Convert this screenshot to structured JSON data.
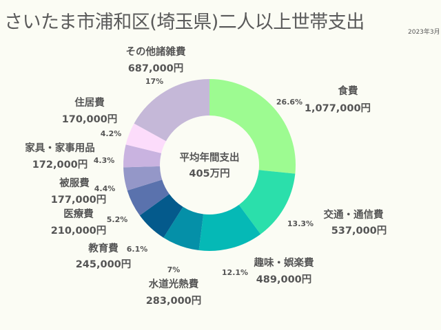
{
  "title": "さいたま市浦和区(埼玉県)二人以上世帯支出",
  "date": "2023年3月",
  "chart_data": {
    "type": "pie",
    "style": "donut",
    "center_label": {
      "line1": "平均年間支出",
      "line2": "405万円"
    },
    "slices": [
      {
        "name": "食費",
        "value_label": "1,077,000円",
        "value": 1077000,
        "percent_label": "26.6%",
        "color": "#9dfb91"
      },
      {
        "name": "交通・通信費",
        "value_label": "537,000円",
        "value": 537000,
        "percent_label": "13.3%",
        "color": "#2bdfab"
      },
      {
        "name": "趣味・娯楽費",
        "value_label": "489,000円",
        "value": 489000,
        "percent_label": "12.1%",
        "color": "#05b9b6"
      },
      {
        "name": "水道光熱費",
        "value_label": "283,000円",
        "value": 283000,
        "percent_label": "7%",
        "color": "#0590a8"
      },
      {
        "name": "教育費",
        "value_label": "245,000円",
        "value": 245000,
        "percent_label": "6.1%",
        "color": "#045a8c"
      },
      {
        "name": "医療費",
        "value_label": "210,000円",
        "value": 210000,
        "percent_label": "5.2%",
        "color": "#5a72ad"
      },
      {
        "name": "被服費",
        "value_label": "177,000円",
        "value": 177000,
        "percent_label": "4.4%",
        "color": "#9497c8"
      },
      {
        "name": "家具・家事用品",
        "value_label": "172,000円",
        "value": 172000,
        "percent_label": "4.3%",
        "color": "#c9b3e0"
      },
      {
        "name": "住居費",
        "value_label": "170,000円",
        "value": 170000,
        "percent_label": "4.2%",
        "color": "#fcdcfb"
      },
      {
        "name": "その他諸雑費",
        "value_label": "687,000円",
        "value": 687000,
        "percent_label": "17%",
        "color": "#c5b8d8"
      }
    ]
  }
}
